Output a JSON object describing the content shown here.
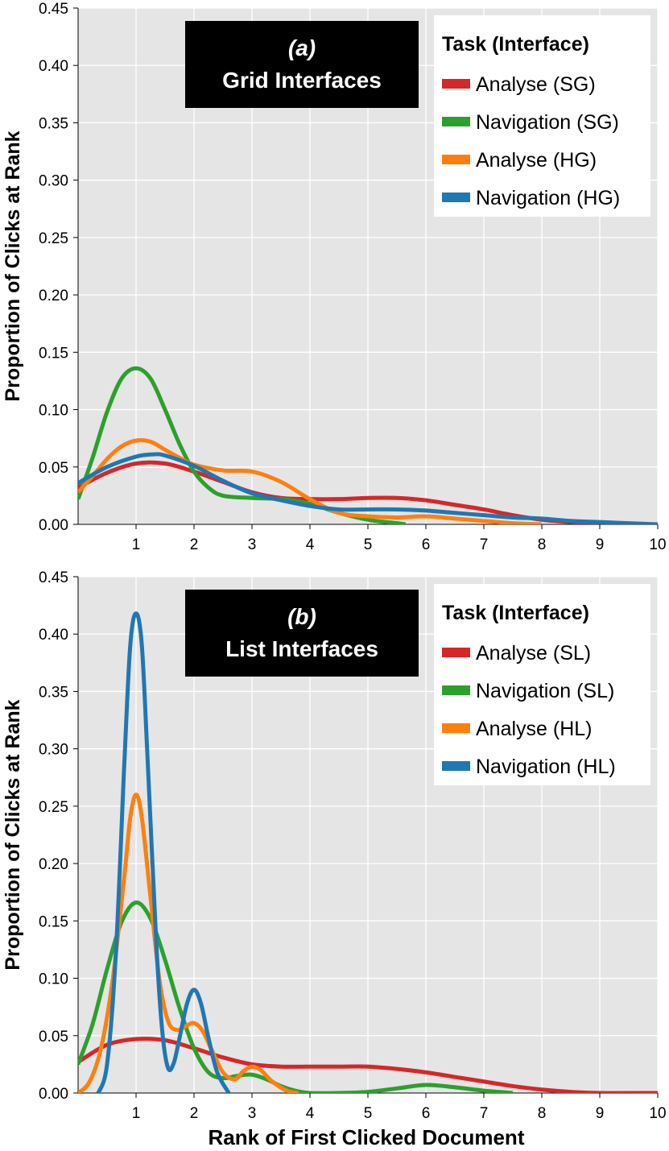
{
  "chart_data": [
    {
      "type": "line",
      "panel_label": "(a)",
      "title": "Grid Interfaces",
      "ylabel": "Proportion of Clicks at Rank",
      "xlabel": "",
      "xlim": [
        0,
        10
      ],
      "ylim": [
        0,
        0.45
      ],
      "xticks": [
        "1",
        "2",
        "3",
        "4",
        "5",
        "6",
        "7",
        "8",
        "9",
        "10"
      ],
      "yticks": [
        "0.00",
        "0.05",
        "0.10",
        "0.15",
        "0.20",
        "0.25",
        "0.30",
        "0.35",
        "0.40",
        "0.45"
      ],
      "grid": true,
      "legend_title": "Task (Interface)",
      "legend_position": "top-right",
      "series": [
        {
          "name": "Analyse (SG)",
          "color": "#d62728",
          "points": [
            [
              0,
              0.032
            ],
            [
              0.5,
              0.045
            ],
            [
              1,
              0.053
            ],
            [
              1.5,
              0.053
            ],
            [
              2,
              0.046
            ],
            [
              2.5,
              0.037
            ],
            [
              3,
              0.028
            ],
            [
              3.5,
              0.023
            ],
            [
              4,
              0.022
            ],
            [
              4.5,
              0.022
            ],
            [
              5,
              0.023
            ],
            [
              5.5,
              0.023
            ],
            [
              6,
              0.021
            ],
            [
              6.5,
              0.017
            ],
            [
              7,
              0.013
            ],
            [
              7.5,
              0.008
            ],
            [
              8,
              0.004
            ],
            [
              8.5,
              0.002
            ],
            [
              9,
              0.001
            ],
            [
              9.5,
              0.0
            ],
            [
              10,
              0.0
            ]
          ]
        },
        {
          "name": "Navigation (SG)",
          "color": "#2ca02c",
          "points": [
            [
              0,
              0.022
            ],
            [
              0.25,
              0.058
            ],
            [
              0.5,
              0.098
            ],
            [
              0.75,
              0.127
            ],
            [
              1,
              0.136
            ],
            [
              1.25,
              0.127
            ],
            [
              1.5,
              0.1
            ],
            [
              1.75,
              0.07
            ],
            [
              2,
              0.046
            ],
            [
              2.25,
              0.032
            ],
            [
              2.5,
              0.025
            ],
            [
              3,
              0.023
            ],
            [
              3.5,
              0.022
            ],
            [
              4,
              0.018
            ],
            [
              4.5,
              0.01
            ],
            [
              5,
              0.004
            ],
            [
              5.5,
              0.001
            ],
            [
              5.65,
              0.0
            ]
          ]
        },
        {
          "name": "Analyse (HG)",
          "color": "#ff7f0e",
          "points": [
            [
              0,
              0.028
            ],
            [
              0.25,
              0.042
            ],
            [
              0.5,
              0.057
            ],
            [
              0.75,
              0.068
            ],
            [
              1,
              0.073
            ],
            [
              1.25,
              0.072
            ],
            [
              1.5,
              0.065
            ],
            [
              1.75,
              0.058
            ],
            [
              2,
              0.052
            ],
            [
              2.5,
              0.047
            ],
            [
              3,
              0.046
            ],
            [
              3.5,
              0.037
            ],
            [
              4,
              0.022
            ],
            [
              4.5,
              0.01
            ],
            [
              5,
              0.007
            ],
            [
              5.5,
              0.006
            ],
            [
              6,
              0.007
            ],
            [
              6.5,
              0.005
            ],
            [
              7,
              0.003
            ],
            [
              7.5,
              0.001
            ],
            [
              8,
              0.0
            ]
          ]
        },
        {
          "name": "Navigation (HG)",
          "color": "#1f77b4",
          "points": [
            [
              0,
              0.036
            ],
            [
              0.5,
              0.05
            ],
            [
              1,
              0.059
            ],
            [
              1.3,
              0.061
            ],
            [
              1.5,
              0.06
            ],
            [
              2,
              0.051
            ],
            [
              2.5,
              0.038
            ],
            [
              3,
              0.027
            ],
            [
              3.5,
              0.021
            ],
            [
              4,
              0.016
            ],
            [
              4.5,
              0.013
            ],
            [
              5,
              0.013
            ],
            [
              5.5,
              0.013
            ],
            [
              6,
              0.012
            ],
            [
              6.5,
              0.01
            ],
            [
              7,
              0.008
            ],
            [
              7.5,
              0.006
            ],
            [
              8,
              0.005
            ],
            [
              8.5,
              0.003
            ],
            [
              9,
              0.002
            ],
            [
              9.5,
              0.001
            ],
            [
              10,
              0.0
            ]
          ]
        }
      ]
    },
    {
      "type": "line",
      "panel_label": "(b)",
      "title": "List Interfaces",
      "ylabel": "Proportion of Clicks at Rank",
      "xlabel": "Rank of First Clicked Document",
      "xlim": [
        0,
        10
      ],
      "ylim": [
        0,
        0.45
      ],
      "xticks": [
        "1",
        "2",
        "3",
        "4",
        "5",
        "6",
        "7",
        "8",
        "9",
        "10"
      ],
      "yticks": [
        "0.00",
        "0.05",
        "0.10",
        "0.15",
        "0.20",
        "0.25",
        "0.30",
        "0.35",
        "0.40",
        "0.45"
      ],
      "grid": true,
      "legend_title": "Task (Interface)",
      "legend_position": "top-right",
      "series": [
        {
          "name": "Analyse (SL)",
          "color": "#d62728",
          "points": [
            [
              0,
              0.027
            ],
            [
              0.5,
              0.042
            ],
            [
              1,
              0.047
            ],
            [
              1.5,
              0.046
            ],
            [
              2,
              0.039
            ],
            [
              2.5,
              0.031
            ],
            [
              3,
              0.025
            ],
            [
              3.5,
              0.023
            ],
            [
              4,
              0.023
            ],
            [
              4.5,
              0.023
            ],
            [
              5,
              0.023
            ],
            [
              5.5,
              0.021
            ],
            [
              6,
              0.018
            ],
            [
              6.5,
              0.014
            ],
            [
              7,
              0.01
            ],
            [
              7.5,
              0.006
            ],
            [
              8,
              0.003
            ],
            [
              8.5,
              0.001
            ],
            [
              9,
              0.0
            ],
            [
              10,
              0.0
            ]
          ]
        },
        {
          "name": "Navigation (SL)",
          "color": "#2ca02c",
          "points": [
            [
              0,
              0.025
            ],
            [
              0.25,
              0.06
            ],
            [
              0.5,
              0.108
            ],
            [
              0.75,
              0.149
            ],
            [
              1,
              0.166
            ],
            [
              1.25,
              0.152
            ],
            [
              1.5,
              0.116
            ],
            [
              1.75,
              0.074
            ],
            [
              2,
              0.039
            ],
            [
              2.25,
              0.018
            ],
            [
              2.5,
              0.013
            ],
            [
              2.75,
              0.015
            ],
            [
              3,
              0.016
            ],
            [
              3.25,
              0.012
            ],
            [
              3.5,
              0.006
            ],
            [
              3.75,
              0.002
            ],
            [
              4,
              0.0
            ],
            [
              4.5,
              0.0
            ],
            [
              5,
              0.001
            ],
            [
              5.5,
              0.004
            ],
            [
              6,
              0.007
            ],
            [
              6.5,
              0.005
            ],
            [
              7,
              0.002
            ],
            [
              7.5,
              0.0
            ]
          ]
        },
        {
          "name": "Analyse (HL)",
          "color": "#ff7f0e",
          "points": [
            [
              0,
              0.0
            ],
            [
              0.2,
              0.01
            ],
            [
              0.4,
              0.04
            ],
            [
              0.6,
              0.1
            ],
            [
              0.8,
              0.19
            ],
            [
              0.9,
              0.24
            ],
            [
              1,
              0.26
            ],
            [
              1.1,
              0.24
            ],
            [
              1.25,
              0.17
            ],
            [
              1.4,
              0.1
            ],
            [
              1.55,
              0.063
            ],
            [
              1.7,
              0.055
            ],
            [
              1.85,
              0.058
            ],
            [
              2,
              0.061
            ],
            [
              2.15,
              0.054
            ],
            [
              2.3,
              0.038
            ],
            [
              2.5,
              0.018
            ],
            [
              2.7,
              0.012
            ],
            [
              2.85,
              0.019
            ],
            [
              3,
              0.023
            ],
            [
              3.15,
              0.02
            ],
            [
              3.35,
              0.01
            ],
            [
              3.6,
              0.002
            ],
            [
              3.8,
              0.0
            ]
          ]
        },
        {
          "name": "Navigation (HL)",
          "color": "#1f77b4",
          "points": [
            [
              0.35,
              0.0
            ],
            [
              0.5,
              0.025
            ],
            [
              0.65,
              0.12
            ],
            [
              0.8,
              0.29
            ],
            [
              0.9,
              0.39
            ],
            [
              1,
              0.418
            ],
            [
              1.1,
              0.39
            ],
            [
              1.2,
              0.29
            ],
            [
              1.35,
              0.13
            ],
            [
              1.45,
              0.055
            ],
            [
              1.55,
              0.022
            ],
            [
              1.65,
              0.026
            ],
            [
              1.75,
              0.048
            ],
            [
              1.88,
              0.078
            ],
            [
              2,
              0.09
            ],
            [
              2.12,
              0.078
            ],
            [
              2.25,
              0.048
            ],
            [
              2.4,
              0.018
            ],
            [
              2.6,
              0.0
            ]
          ]
        }
      ]
    }
  ]
}
